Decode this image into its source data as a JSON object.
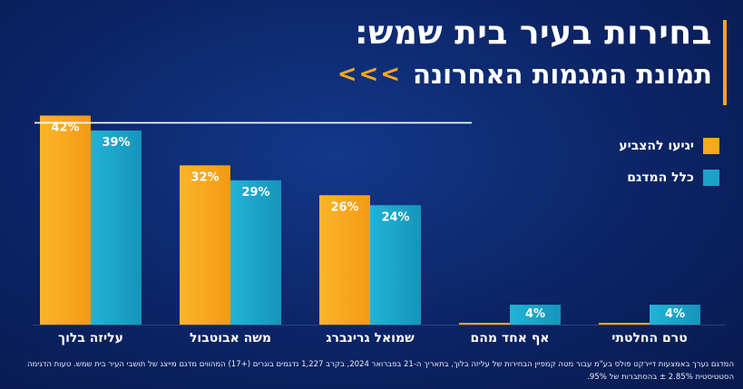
{
  "header": {
    "title": "בחירות בעיר בית שמש:",
    "subtitle": "תמונת המגמות האחרונה",
    "arrows": "<<<",
    "accent_color": "#f7a81b"
  },
  "legend": [
    {
      "label": "יגיעו להצביע",
      "color": "#f7a81b"
    },
    {
      "label": "כלל המדגם",
      "color": "#1aa3c8"
    }
  ],
  "chart_data": {
    "type": "bar",
    "title": "בחירות בעיר בית שמש: תמונת המגמות האחרונה",
    "categories": [
      "עליזה בלוך",
      "משה אבוטבול",
      "שמואל גרינברג",
      "אף אחד מהם",
      "טרם החלטתי"
    ],
    "series": [
      {
        "name": "יגיעו להצביע",
        "color": "#f7a81b",
        "values": [
          42,
          32,
          26,
          0,
          0
        ],
        "labels": [
          "42%",
          "32%",
          "26%",
          "",
          ""
        ]
      },
      {
        "name": "כלל המדגם",
        "color": "#1aa3c8",
        "values": [
          39,
          29,
          24,
          4,
          4
        ],
        "labels": [
          "39%",
          "29%",
          "24%",
          "4%",
          "4%"
        ]
      }
    ],
    "reference_line": 42,
    "ylim": [
      0,
      45
    ],
    "xlabel": "",
    "ylabel": "",
    "grid": false,
    "legend_position": "top-right"
  },
  "footnote": "המדגם נערך באמצעות דיירקט פולס בע\"מ עבור מטה קמפיין הבחירות של עליזה בלוך, בתאריך ה-21 בפברואר 2024, בקרב 1,227 נדגמים בוגרים (+17) המהווים מדגם מייצג של תושבי העיר בית שמש. טעות הדגימה הסטטיסטית 2.85% ± בהסתברות של 95%."
}
